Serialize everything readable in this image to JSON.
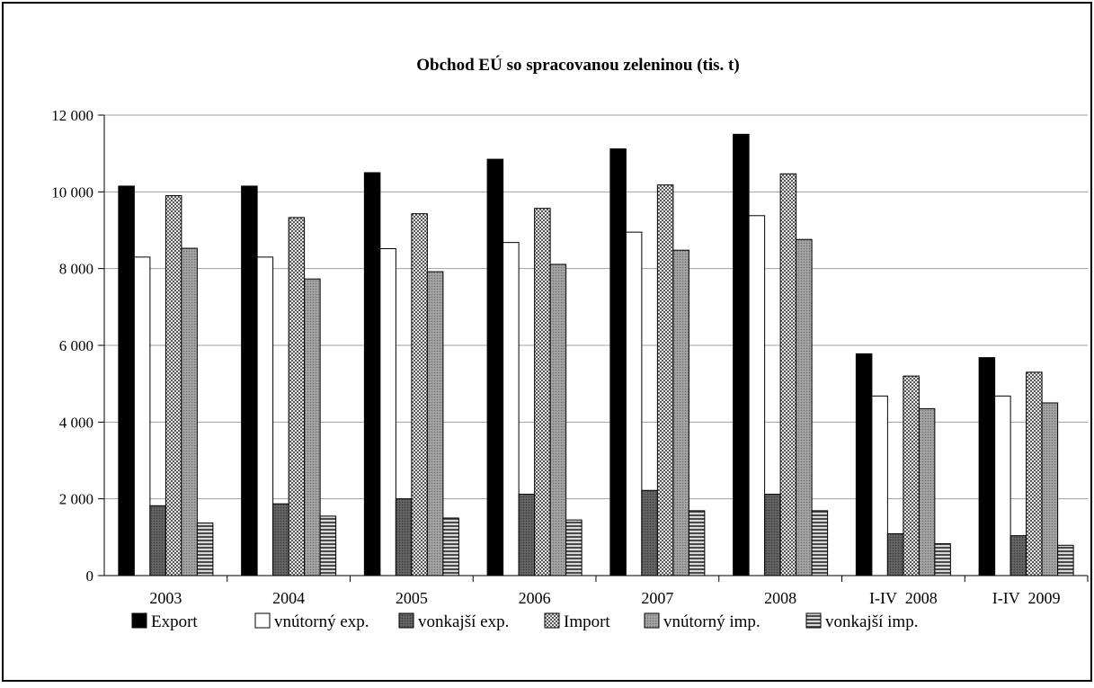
{
  "chart_data": {
    "type": "bar",
    "title": "Obchod  EÚ so spracovanou  zeleninou (tis. t)",
    "xlabel": "",
    "ylabel": "",
    "categories": [
      "2003",
      "2004",
      "2005",
      "2006",
      "2007",
      "2008",
      "I-IV  2008",
      "I-IV  2009"
    ],
    "ylim": [
      0,
      12000
    ],
    "yticks": [
      0,
      2000,
      4000,
      6000,
      8000,
      10000,
      12000
    ],
    "ytick_labels": [
      "0",
      "2 000",
      "4 000",
      "6 000",
      "8 000",
      "10 000",
      "12 000"
    ],
    "grid": true,
    "legend_position": "bottom",
    "series": [
      {
        "name": "Export",
        "fill": "solid-black",
        "values": [
          10150,
          10150,
          10500,
          10850,
          11120,
          11500,
          5780,
          5680
        ]
      },
      {
        "name": "vnútorný exp.",
        "fill": "white",
        "values": [
          8300,
          8300,
          8520,
          8680,
          8950,
          9380,
          4680,
          4680
        ]
      },
      {
        "name": "vonkajší exp.",
        "fill": "dark-dots",
        "values": [
          1820,
          1870,
          2000,
          2120,
          2220,
          2120,
          1090,
          1040
        ]
      },
      {
        "name": "Import",
        "fill": "checker",
        "values": [
          9900,
          9330,
          9430,
          9570,
          10180,
          10470,
          5200,
          5300
        ]
      },
      {
        "name": "vnútorný imp.",
        "fill": "gray-dots",
        "values": [
          8530,
          7730,
          7920,
          8110,
          8480,
          8760,
          4350,
          4500
        ]
      },
      {
        "name": "vonkajší imp.",
        "fill": "hstripes",
        "values": [
          1370,
          1550,
          1500,
          1450,
          1690,
          1690,
          830,
          790
        ]
      }
    ]
  }
}
